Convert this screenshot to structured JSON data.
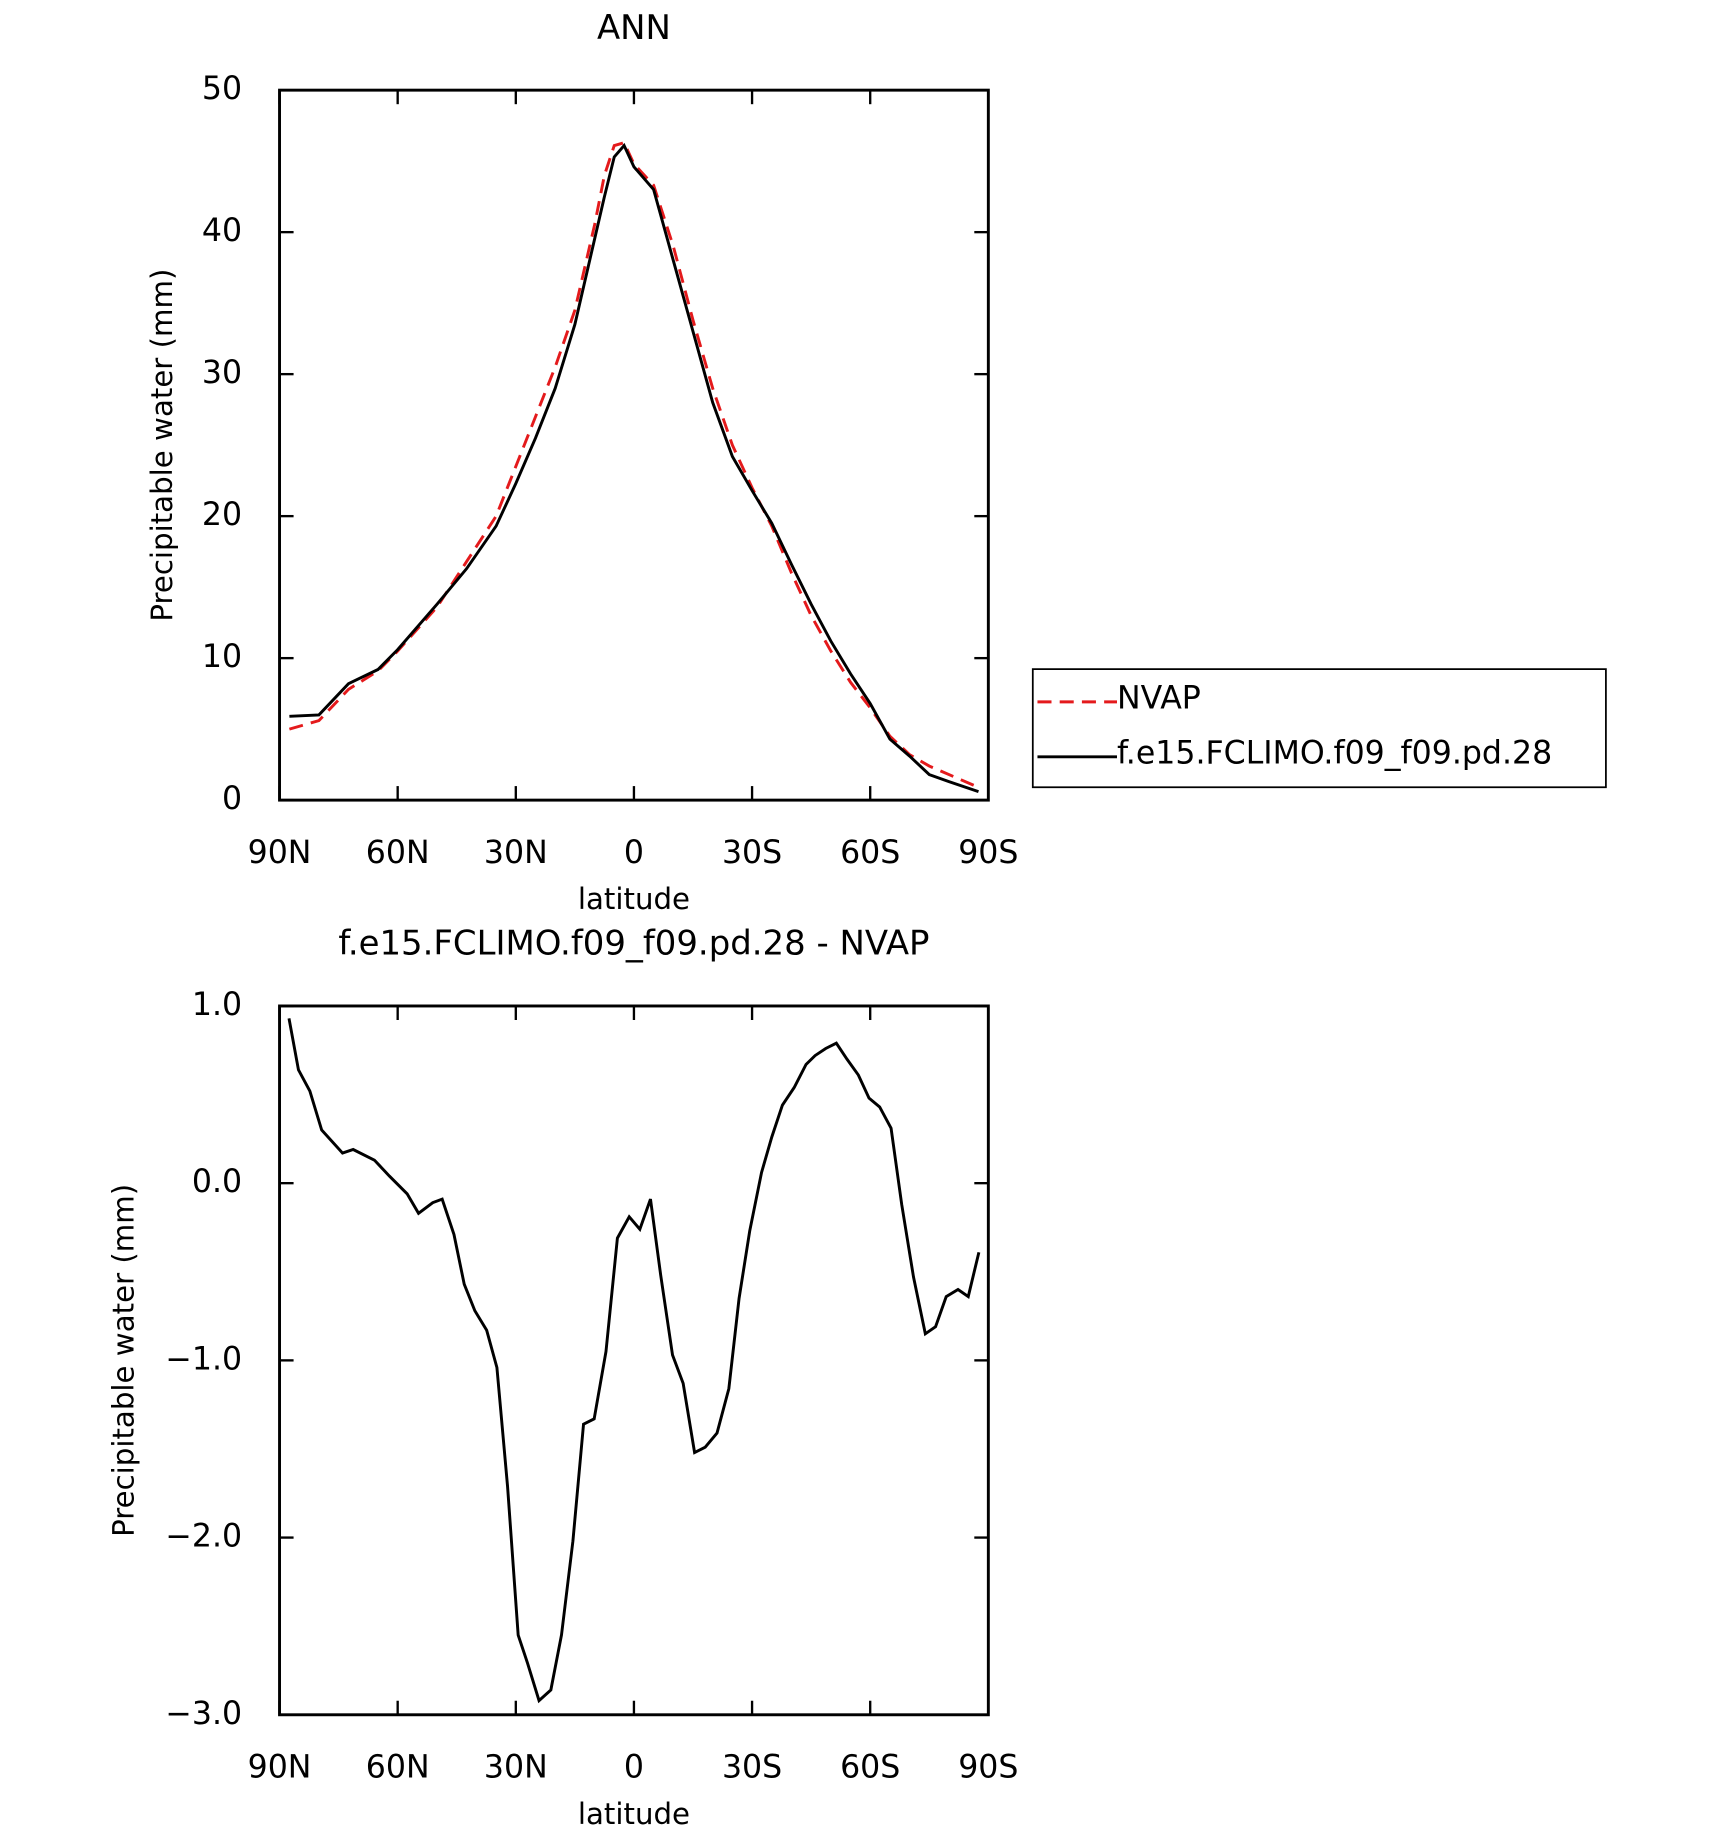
{
  "chart_data": [
    {
      "type": "line",
      "title": "ANN",
      "x_label": "latitude",
      "y_label": "Precipitable water (mm)",
      "x": [
        87.5,
        80,
        72.5,
        65,
        60,
        50,
        42.5,
        35,
        30,
        25,
        20,
        15,
        10,
        7.5,
        5,
        2.5,
        0,
        -5,
        -10,
        -15,
        -20,
        -25,
        -30,
        -35,
        -40,
        -45,
        -50,
        -55,
        -60,
        -65,
        -70,
        -75,
        -80,
        -87.5
      ],
      "xlim": [
        90,
        -90
      ],
      "xticks": [
        {
          "value": 90,
          "label": "90N"
        },
        {
          "value": 60,
          "label": "60N"
        },
        {
          "value": 30,
          "label": "30N"
        },
        0,
        {
          "value": -30,
          "label": "30S"
        },
        {
          "value": -60,
          "label": "60S"
        },
        {
          "value": -90,
          "label": "90S"
        }
      ],
      "ylim": [
        0,
        50
      ],
      "yticks": [
        0,
        10,
        20,
        30,
        40,
        50
      ],
      "legend": "right",
      "series": [
        {
          "name": "NVAP",
          "color": "#e41a1c",
          "dash": true,
          "values": [
            5.0,
            5.6,
            7.8,
            9.1,
            10.5,
            13.6,
            16.8,
            20,
            23.5,
            27,
            30.5,
            34.5,
            40.5,
            44,
            46.1,
            46.3,
            44.8,
            43.3,
            39,
            33.8,
            29,
            25,
            22,
            19.3,
            16,
            13,
            10.5,
            8.3,
            6.5,
            4.5,
            3.2,
            2.4,
            1.8,
            0.9
          ]
        },
        {
          "name": "f.e15.FCLIMO.f09_f09.pd.28",
          "color": "#000000",
          "dash": false,
          "values": [
            5.9,
            6.0,
            8.2,
            9.2,
            10.6,
            13.8,
            16.3,
            19.3,
            22.3,
            25.5,
            29,
            33.5,
            39.5,
            42.5,
            45.3,
            46.1,
            44.6,
            43,
            38,
            33,
            28,
            24.2,
            21.8,
            19.5,
            16.6,
            13.8,
            11.2,
            8.9,
            6.8,
            4.3,
            3.1,
            1.8,
            1.3,
            0.6
          ]
        }
      ]
    },
    {
      "type": "line",
      "title": "f.e15.FCLIMO.f09_f09.pd.28 - NVAP",
      "x_label": "latitude",
      "y_label": "Precipitable water (mm)",
      "x": [
        87.6,
        85.2,
        82.3,
        79.3,
        74.0,
        71.3,
        65.9,
        62.1,
        57.6,
        54.7,
        51.1,
        48.7,
        45.7,
        43.1,
        40.4,
        37.4,
        34.8,
        32.1,
        29.4,
        27.0,
        24.1,
        21.1,
        18.4,
        15.5,
        12.8,
        10.1,
        7.1,
        4.2,
        1.2,
        -1.5,
        -4.2,
        -6.8,
        -9.8,
        -12.5,
        -15.4,
        -18.1,
        -21.1,
        -24.1,
        -26.7,
        -29.4,
        -32.4,
        -35.0,
        -37.7,
        -40.7,
        -43.7,
        -46.0,
        -48.7,
        -51.4,
        -54.1,
        -57.0,
        -59.7,
        -62.4,
        -65.3,
        -68.0,
        -71.0,
        -74.0,
        -76.6,
        -79.3,
        -82.3,
        -84.9,
        -87.6
      ],
      "xlim": [
        90,
        -90
      ],
      "xticks": [
        {
          "value": 90,
          "label": "90N"
        },
        {
          "value": 60,
          "label": "60N"
        },
        {
          "value": 30,
          "label": "30N"
        },
        0,
        {
          "value": -30,
          "label": "30S"
        },
        {
          "value": -60,
          "label": "60S"
        },
        {
          "value": -90,
          "label": "90S"
        }
      ],
      "ylim": [
        -3,
        1
      ],
      "yticks": [
        {
          "value": -3,
          "label": "−3.0"
        },
        {
          "value": -2,
          "label": "−2.0"
        },
        {
          "value": -1,
          "label": "−1.0"
        },
        {
          "value": 0,
          "label": "0.0"
        },
        {
          "value": 1,
          "label": "1.0"
        }
      ],
      "series": [
        {
          "color": "#000000",
          "dash": false,
          "values": [
            0.93,
            0.64,
            0.52,
            0.3,
            0.17,
            0.19,
            0.13,
            0.04,
            -0.06,
            -0.17,
            -0.11,
            -0.09,
            -0.29,
            -0.57,
            -0.72,
            -0.83,
            -1.04,
            -1.71,
            -2.55,
            -2.71,
            -2.92,
            -2.86,
            -2.55,
            -2.02,
            -1.36,
            -1.33,
            -0.95,
            -0.31,
            -0.19,
            -0.26,
            -0.09,
            -0.52,
            -0.97,
            -1.13,
            -1.52,
            -1.49,
            -1.41,
            -1.16,
            -0.65,
            -0.27,
            0.06,
            0.26,
            0.44,
            0.54,
            0.67,
            0.72,
            0.76,
            0.79,
            0.7,
            0.61,
            0.48,
            0.43,
            0.31,
            -0.12,
            -0.53,
            -0.85,
            -0.81,
            -0.64,
            -0.6,
            -0.64,
            -0.39
          ]
        }
      ]
    }
  ]
}
